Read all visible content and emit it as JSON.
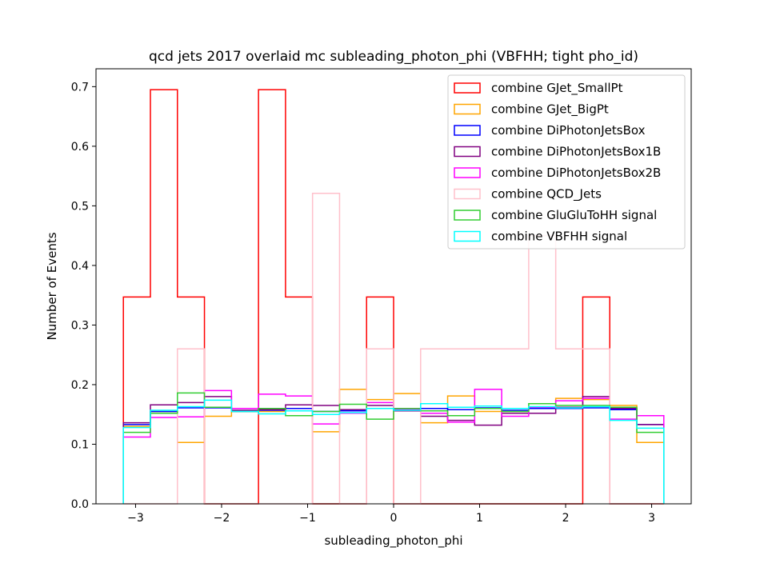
{
  "chart_data": {
    "type": "step-histogram",
    "title": "qcd jets 2017 overlaid mc subleading_photon_phi (VBFHH; tight pho_id)",
    "xlabel": "subleading_photon_phi",
    "ylabel": "Number of Events",
    "xlim": [
      -3.46,
      3.46
    ],
    "ylim": [
      0.0,
      0.73
    ],
    "xticks": [
      -3,
      -2,
      -1,
      0,
      1,
      2,
      3
    ],
    "xtick_labels": [
      "−3",
      "−2",
      "−1",
      "0",
      "1",
      "2",
      "3"
    ],
    "yticks": [
      0.0,
      0.1,
      0.2,
      0.3,
      0.4,
      0.5,
      0.6,
      0.7
    ],
    "ytick_labels": [
      "0.0",
      "0.1",
      "0.2",
      "0.3",
      "0.4",
      "0.5",
      "0.6",
      "0.7"
    ],
    "legend_position": "top-right",
    "bin_edges": [
      -3.1416,
      -2.8274,
      -2.5133,
      -2.1991,
      -1.885,
      -1.5708,
      -1.2566,
      -0.9425,
      -0.6283,
      -0.3142,
      0.0,
      0.3142,
      0.6283,
      0.9425,
      1.2566,
      1.5708,
      1.885,
      2.1991,
      2.5133,
      2.8274,
      3.1416
    ],
    "series": [
      {
        "name": "combine GJet_SmallPt",
        "color": "#ff0000",
        "values": [
          0.347,
          0.695,
          0.347,
          0.0,
          0.0,
          0.695,
          0.347,
          0.0,
          0.0,
          0.347,
          0.0,
          0.0,
          0.0,
          0.0,
          0.0,
          0.0,
          0.0,
          0.347,
          0.0,
          0.0
        ]
      },
      {
        "name": "combine GJet_BigPt",
        "color": "#ffa500",
        "values": [
          0.13,
          0.155,
          0.103,
          0.147,
          0.155,
          0.155,
          0.16,
          0.121,
          0.192,
          0.175,
          0.185,
          0.136,
          0.181,
          0.155,
          0.155,
          0.16,
          0.177,
          0.175,
          0.165,
          0.103
        ]
      },
      {
        "name": "combine DiPhotonJetsBox",
        "color": "#0000ff",
        "values": [
          0.133,
          0.155,
          0.161,
          0.161,
          0.155,
          0.157,
          0.16,
          0.155,
          0.156,
          0.16,
          0.157,
          0.16,
          0.158,
          0.161,
          0.157,
          0.16,
          0.16,
          0.161,
          0.158,
          0.133
        ]
      },
      {
        "name": "combine DiPhotonJetsBox1B",
        "color": "#800080",
        "values": [
          0.136,
          0.166,
          0.17,
          0.18,
          0.157,
          0.158,
          0.166,
          0.165,
          0.158,
          0.165,
          0.156,
          0.147,
          0.14,
          0.132,
          0.152,
          0.152,
          0.162,
          0.18,
          0.16,
          0.133
        ]
      },
      {
        "name": "combine DiPhotonJetsBox2B",
        "color": "#ff00ff",
        "values": [
          0.112,
          0.145,
          0.146,
          0.19,
          0.16,
          0.184,
          0.181,
          0.134,
          0.152,
          0.17,
          0.158,
          0.152,
          0.137,
          0.192,
          0.147,
          0.162,
          0.173,
          0.177,
          0.142,
          0.148
        ]
      },
      {
        "name": "combine QCD_Jets",
        "color": "#ffc0cb",
        "values": [
          0.0,
          0.0,
          0.26,
          0.0,
          0.0,
          0.0,
          0.0,
          0.521,
          0.0,
          0.26,
          0.0,
          0.26,
          0.26,
          0.26,
          0.26,
          0.45,
          0.26,
          0.26,
          0.0,
          0.0
        ]
      },
      {
        "name": "combine GluGluToHH signal",
        "color": "#32cd32",
        "values": [
          0.12,
          0.152,
          0.186,
          0.162,
          0.155,
          0.16,
          0.148,
          0.155,
          0.167,
          0.142,
          0.16,
          0.156,
          0.148,
          0.16,
          0.155,
          0.168,
          0.165,
          0.165,
          0.162,
          0.12
        ]
      },
      {
        "name": "combine VBFHH signal",
        "color": "#00ffff",
        "values": [
          0.128,
          0.157,
          0.163,
          0.174,
          0.155,
          0.151,
          0.156,
          0.15,
          0.153,
          0.16,
          0.157,
          0.168,
          0.162,
          0.164,
          0.16,
          0.163,
          0.161,
          0.163,
          0.14,
          0.127
        ]
      }
    ]
  }
}
